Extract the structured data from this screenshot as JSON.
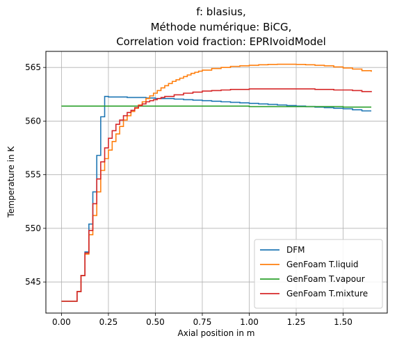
{
  "chart_data": {
    "type": "line",
    "title_lines": [
      "f: blasius,",
      "Méthode numérique: BiCG,",
      "Correlation void fraction: EPRIvoidModel"
    ],
    "xlabel": "Axial position in m",
    "ylabel": "Temperature in K",
    "xlim": [
      -0.083,
      1.735
    ],
    "ylim": [
      542.1,
      566.5
    ],
    "xticks": [
      0.0,
      0.25,
      0.5,
      0.75,
      1.0,
      1.25,
      1.5
    ],
    "xtick_labels": [
      "0.00",
      "0.25",
      "0.50",
      "0.75",
      "1.00",
      "1.25",
      "1.50"
    ],
    "yticks": [
      545,
      550,
      555,
      560,
      565
    ],
    "ytick_labels": [
      "545",
      "550",
      "555",
      "560",
      "565"
    ],
    "grid": true,
    "legend_position": "lower-right",
    "step": true,
    "series": [
      {
        "name": "DFM",
        "color": "#1f77b4",
        "x": [
          0.0,
          0.083,
          0.104,
          0.125,
          0.146,
          0.167,
          0.188,
          0.209,
          0.23,
          0.25,
          0.3,
          0.35,
          0.4,
          0.45,
          0.5,
          0.55,
          0.6,
          0.65,
          0.7,
          0.75,
          0.8,
          0.85,
          0.9,
          0.95,
          1.0,
          1.05,
          1.1,
          1.15,
          1.2,
          1.25,
          1.3,
          1.35,
          1.4,
          1.45,
          1.5,
          1.55,
          1.6,
          1.65
        ],
        "y": [
          543.2,
          544.1,
          545.6,
          547.8,
          550.4,
          553.4,
          556.8,
          560.4,
          562.3,
          562.25,
          562.25,
          562.2,
          562.2,
          562.15,
          562.1,
          562.1,
          562.05,
          562.0,
          561.95,
          561.9,
          561.85,
          561.8,
          561.75,
          561.7,
          561.65,
          561.6,
          561.55,
          561.5,
          561.45,
          561.4,
          561.35,
          561.3,
          561.25,
          561.2,
          561.15,
          561.05,
          560.95,
          560.95
        ]
      },
      {
        "name": "GenFoam T.liquid",
        "color": "#ff7f0e",
        "x": [
          0.0,
          0.083,
          0.104,
          0.125,
          0.146,
          0.167,
          0.188,
          0.209,
          0.23,
          0.25,
          0.27,
          0.29,
          0.31,
          0.33,
          0.35,
          0.37,
          0.39,
          0.41,
          0.43,
          0.45,
          0.47,
          0.49,
          0.51,
          0.53,
          0.55,
          0.57,
          0.59,
          0.61,
          0.63,
          0.65,
          0.67,
          0.69,
          0.71,
          0.73,
          0.75,
          0.8,
          0.85,
          0.9,
          0.95,
          1.0,
          1.05,
          1.1,
          1.15,
          1.2,
          1.25,
          1.3,
          1.35,
          1.4,
          1.45,
          1.5,
          1.55,
          1.6,
          1.65
        ],
        "y": [
          543.2,
          544.1,
          545.6,
          547.6,
          549.4,
          551.2,
          553.4,
          555.4,
          556.5,
          557.3,
          558.1,
          558.8,
          559.5,
          560.1,
          560.5,
          560.9,
          561.2,
          561.5,
          561.8,
          562.1,
          562.35,
          562.6,
          562.85,
          563.1,
          563.3,
          563.5,
          563.7,
          563.85,
          564.0,
          564.15,
          564.3,
          564.45,
          564.55,
          564.65,
          564.75,
          564.9,
          565.0,
          565.1,
          565.15,
          565.2,
          565.25,
          565.28,
          565.3,
          565.3,
          565.28,
          565.25,
          565.2,
          565.15,
          565.05,
          564.95,
          564.85,
          564.7,
          564.6
        ]
      },
      {
        "name": "GenFoam T.vapour",
        "color": "#2ca02c",
        "x": [
          0.0,
          0.25,
          0.5,
          0.75,
          1.0,
          1.25,
          1.5,
          1.65
        ],
        "y": [
          561.4,
          561.4,
          561.4,
          561.4,
          561.35,
          561.35,
          561.3,
          561.3
        ]
      },
      {
        "name": "GenFoam T.mixture",
        "color": "#d62728",
        "x": [
          0.0,
          0.083,
          0.104,
          0.125,
          0.146,
          0.167,
          0.188,
          0.209,
          0.23,
          0.25,
          0.27,
          0.29,
          0.31,
          0.33,
          0.35,
          0.37,
          0.39,
          0.41,
          0.43,
          0.45,
          0.47,
          0.49,
          0.51,
          0.53,
          0.55,
          0.6,
          0.65,
          0.7,
          0.75,
          0.8,
          0.85,
          0.9,
          0.95,
          1.0,
          1.05,
          1.1,
          1.15,
          1.2,
          1.25,
          1.3,
          1.35,
          1.4,
          1.45,
          1.5,
          1.55,
          1.6,
          1.65
        ],
        "y": [
          543.2,
          544.1,
          545.6,
          547.7,
          549.8,
          552.3,
          554.6,
          556.2,
          557.5,
          558.4,
          559.1,
          559.7,
          560.1,
          560.5,
          560.8,
          561.0,
          561.25,
          561.45,
          561.6,
          561.8,
          561.9,
          562.0,
          562.1,
          562.2,
          562.3,
          562.45,
          562.6,
          562.7,
          562.8,
          562.85,
          562.9,
          562.95,
          562.95,
          563.0,
          563.0,
          563.0,
          563.0,
          563.0,
          563.0,
          563.0,
          562.95,
          562.95,
          562.9,
          562.9,
          562.85,
          562.75,
          562.7
        ]
      }
    ]
  }
}
